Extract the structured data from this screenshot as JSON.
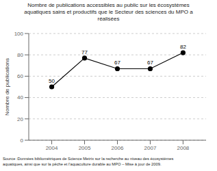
{
  "chart_data": {
    "type": "line",
    "title": "Nombre de publications accessibles au public sur les écosystèmes\naquatiques sains et productifs que le Secteur des sciences du MPO a\nréalisées",
    "y_label": "Nombre de publications",
    "x": [
      2004,
      2005,
      2006,
      2007,
      2008
    ],
    "values": [
      50,
      77,
      67,
      67,
      82
    ],
    "color": "#000000",
    "marker": "circle",
    "xlim": [
      2003.3,
      2008.7
    ],
    "xticks": [
      2004,
      2005,
      2006,
      2007,
      2008
    ],
    "ylim": [
      0,
      100
    ],
    "yticks": [
      0,
      20,
      40,
      60,
      80,
      100
    ],
    "grid": true,
    "data_labels": true,
    "annotations": [
      "Source :Données bibliométriques de Science Metrix sur la recherche au niveau des écosystèmes\naquatiques, ainsi que sur la pêche et l'aquaculture durable au MPO – Mise à jour de 2009."
    ]
  }
}
